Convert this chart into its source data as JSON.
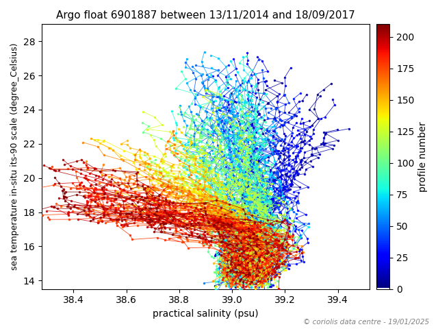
{
  "title": "Argo float 6901887 between 13/11/2014 and 18/09/2017",
  "xlabel": "practical salinity (psu)",
  "ylabel": "sea temperature in-situ its-90 scale (degree_Celsius)",
  "colorbar_label": "profile number",
  "copyright": "© coriolis data centre - 19/01/2025",
  "xlim": [
    38.28,
    39.52
  ],
  "ylim": [
    13.5,
    29.0
  ],
  "xticks": [
    38.4,
    38.6,
    38.8,
    39.0,
    39.2,
    39.4
  ],
  "yticks": [
    14,
    16,
    18,
    20,
    22,
    24,
    26,
    28
  ],
  "colorbar_ticks": [
    0,
    25,
    50,
    75,
    100,
    125,
    150,
    175,
    200
  ],
  "n_profiles": 210,
  "cmap_vmin": 1,
  "cmap_vmax": 210,
  "seed": 42,
  "figsize": [
    6.4,
    4.8
  ],
  "dpi": 100
}
